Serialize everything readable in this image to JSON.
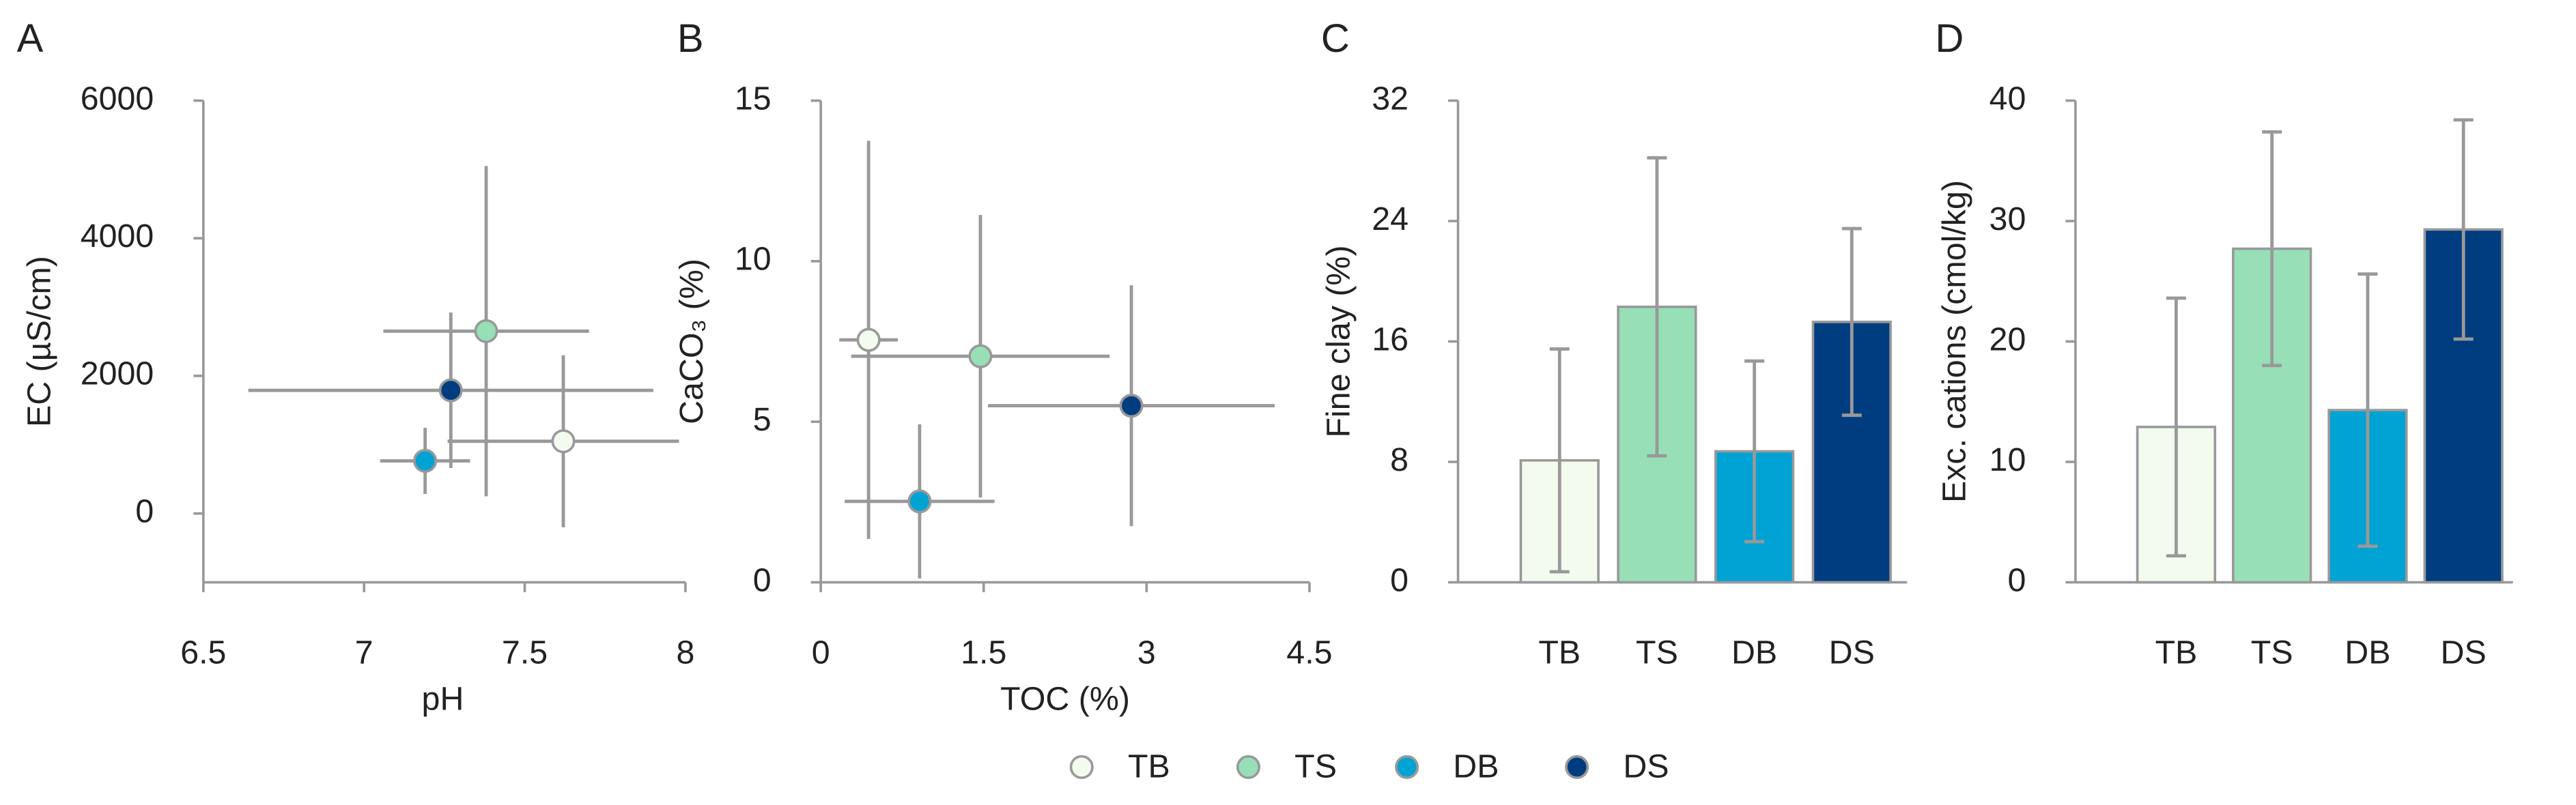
{
  "chart_data": [
    {
      "type": "scatter",
      "panel": "A",
      "xlabel": "pH",
      "ylabel": "EC (µS/cm)",
      "xlim": [
        6.5,
        8
      ],
      "xticks": [
        6.5,
        7,
        7.5,
        8
      ],
      "ylim": [
        -1000,
        6000
      ],
      "yticks": [
        0,
        2000,
        4000,
        6000
      ],
      "series": [
        {
          "name": "TB",
          "color": "#f3fbee",
          "x": [
            7.62
          ],
          "values": [
            1050
          ],
          "xerr": [
            0.36
          ],
          "yerr": [
            1250
          ]
        },
        {
          "name": "TS",
          "color": "#97e0b7",
          "x": [
            7.38
          ],
          "values": [
            2650
          ],
          "xerr": [
            0.32
          ],
          "yerr": [
            2400
          ]
        },
        {
          "name": "DB",
          "color": "#00a3d4",
          "x": [
            7.19
          ],
          "values": [
            765
          ],
          "xerr": [
            0.14
          ],
          "yerr": [
            480
          ]
        },
        {
          "name": "DS",
          "color": "#003d80",
          "x": [
            7.27
          ],
          "values": [
            1790
          ],
          "xerr": [
            0.63
          ],
          "yerr": [
            1130
          ]
        }
      ]
    },
    {
      "type": "scatter",
      "panel": "B",
      "xlabel": "TOC (%)",
      "ylabel": "CaCO₃ (%)",
      "xlim": [
        0,
        4.5
      ],
      "xticks": [
        0,
        1.5,
        3,
        4.5
      ],
      "ylim": [
        0,
        15
      ],
      "yticks": [
        0,
        5,
        10,
        15
      ],
      "series": [
        {
          "name": "TB",
          "color": "#f3fbee",
          "x": [
            0.44
          ],
          "values": [
            7.55
          ],
          "xerr": [
            0.27
          ],
          "yerr": [
            6.2
          ]
        },
        {
          "name": "TS",
          "color": "#97e0b7",
          "x": [
            1.47
          ],
          "values": [
            7.04
          ],
          "xerr": [
            1.19
          ],
          "yerr": [
            4.4
          ]
        },
        {
          "name": "DB",
          "color": "#00a3d4",
          "x": [
            0.91
          ],
          "values": [
            2.52
          ],
          "xerr": [
            0.69
          ],
          "yerr": [
            2.4
          ]
        },
        {
          "name": "DS",
          "color": "#003d80",
          "x": [
            2.86
          ],
          "values": [
            5.5
          ],
          "xerr": [
            1.32
          ],
          "yerr": [
            3.75
          ]
        }
      ]
    },
    {
      "type": "bar",
      "panel": "C",
      "ylabel": "Fine clay (%)",
      "categories": [
        "TB",
        "TS",
        "DB",
        "DS"
      ],
      "values": [
        8.1,
        18.3,
        8.7,
        17.3
      ],
      "errors": [
        7.4,
        9.9,
        6.0,
        6.2
      ],
      "colors": [
        "#f3fbee",
        "#97e0b7",
        "#00a3d4",
        "#003d80"
      ],
      "ylim": [
        0,
        32
      ],
      "yticks": [
        0,
        8,
        16,
        24,
        32
      ]
    },
    {
      "type": "bar",
      "panel": "D",
      "ylabel": "Exc. cations (cmol/kg)",
      "categories": [
        "TB",
        "TS",
        "DB",
        "DS"
      ],
      "values": [
        12.9,
        27.7,
        14.3,
        29.3
      ],
      "errors": [
        10.7,
        9.7,
        11.3,
        9.1
      ],
      "colors": [
        "#f3fbee",
        "#97e0b7",
        "#00a3d4",
        "#003d80"
      ],
      "ylim": [
        0,
        40
      ],
      "yticks": [
        0,
        10,
        20,
        30,
        40
      ]
    }
  ]
}
